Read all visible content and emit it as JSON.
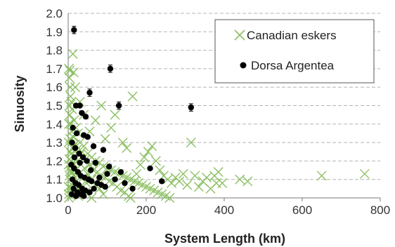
{
  "chart_data": {
    "type": "scatter",
    "xlabel": "System Length (km)",
    "ylabel": "Sinuosity",
    "xlim": [
      0,
      800
    ],
    "ylim": [
      1.0,
      2.0
    ],
    "x_ticks": [
      "0",
      "200",
      "400",
      "600",
      "800"
    ],
    "y_ticks": [
      "1.0",
      "1.1",
      "1.2",
      "1.3",
      "1.4",
      "1.5",
      "1.6",
      "1.7",
      "1.8",
      "1.9",
      "2.0"
    ],
    "grid": "horizontal dashed",
    "legend_position": "top-right",
    "series": [
      {
        "name": "Canadian eskers",
        "marker": "x",
        "color": "#8cc063",
        "points": [
          [
            2,
            1.7
          ],
          [
            4,
            1.69
          ],
          [
            3,
            1.65
          ],
          [
            5,
            1.6
          ],
          [
            12,
            1.78
          ],
          [
            6,
            1.55
          ],
          [
            8,
            1.52
          ],
          [
            3,
            1.5
          ],
          [
            10,
            1.48
          ],
          [
            4,
            1.45
          ],
          [
            15,
            1.42
          ],
          [
            7,
            1.4
          ],
          [
            20,
            1.38
          ],
          [
            9,
            1.36
          ],
          [
            25,
            1.35
          ],
          [
            13,
            1.33
          ],
          [
            5,
            1.32
          ],
          [
            30,
            1.3
          ],
          [
            18,
            1.29
          ],
          [
            40,
            1.28
          ],
          [
            11,
            1.27
          ],
          [
            22,
            1.26
          ],
          [
            35,
            1.25
          ],
          [
            8,
            1.24
          ],
          [
            50,
            1.24
          ],
          [
            28,
            1.23
          ],
          [
            16,
            1.22
          ],
          [
            60,
            1.22
          ],
          [
            3,
            1.21
          ],
          [
            45,
            1.21
          ],
          [
            70,
            1.2
          ],
          [
            24,
            1.2
          ],
          [
            12,
            1.19
          ],
          [
            80,
            1.19
          ],
          [
            55,
            1.18
          ],
          [
            33,
            1.18
          ],
          [
            6,
            1.17
          ],
          [
            90,
            1.17
          ],
          [
            42,
            1.16
          ],
          [
            100,
            1.16
          ],
          [
            19,
            1.15
          ],
          [
            65,
            1.15
          ],
          [
            110,
            1.15
          ],
          [
            8,
            1.14
          ],
          [
            75,
            1.14
          ],
          [
            120,
            1.14
          ],
          [
            27,
            1.13
          ],
          [
            50,
            1.13
          ],
          [
            130,
            1.13
          ],
          [
            14,
            1.12
          ],
          [
            85,
            1.12
          ],
          [
            140,
            1.12
          ],
          [
            38,
            1.11
          ],
          [
            95,
            1.11
          ],
          [
            150,
            1.11
          ],
          [
            4,
            1.1
          ],
          [
            60,
            1.1
          ],
          [
            160,
            1.1
          ],
          [
            21,
            1.09
          ],
          [
            105,
            1.09
          ],
          [
            170,
            1.09
          ],
          [
            47,
            1.08
          ],
          [
            115,
            1.08
          ],
          [
            180,
            1.08
          ],
          [
            10,
            1.07
          ],
          [
            70,
            1.07
          ],
          [
            190,
            1.07
          ],
          [
            31,
            1.06
          ],
          [
            125,
            1.06
          ],
          [
            200,
            1.06
          ],
          [
            5,
            1.05
          ],
          [
            80,
            1.05
          ],
          [
            210,
            1.05
          ],
          [
            17,
            1.04
          ],
          [
            135,
            1.04
          ],
          [
            220,
            1.04
          ],
          [
            44,
            1.03
          ],
          [
            145,
            1.03
          ],
          [
            230,
            1.03
          ],
          [
            9,
            1.02
          ],
          [
            90,
            1.02
          ],
          [
            240,
            1.02
          ],
          [
            26,
            1.01
          ],
          [
            155,
            1.01
          ],
          [
            250,
            1.01
          ],
          [
            2,
            1.0
          ],
          [
            60,
            1.0
          ],
          [
            160,
            1.0
          ],
          [
            260,
            1.0
          ],
          [
            36,
            1.03
          ],
          [
            175,
            1.13
          ],
          [
            185,
            1.18
          ],
          [
            195,
            1.22
          ],
          [
            205,
            1.25
          ],
          [
            215,
            1.28
          ],
          [
            225,
            1.2
          ],
          [
            235,
            1.15
          ],
          [
            245,
            1.12
          ],
          [
            255,
            1.1
          ],
          [
            265,
            1.08
          ],
          [
            275,
            1.11
          ],
          [
            285,
            1.09
          ],
          [
            295,
            1.13
          ],
          [
            305,
            1.07
          ],
          [
            315,
            1.3
          ],
          [
            325,
            1.12
          ],
          [
            335,
            1.06
          ],
          [
            345,
            1.09
          ],
          [
            355,
            1.11
          ],
          [
            365,
            1.05
          ],
          [
            375,
            1.12
          ],
          [
            385,
            1.14
          ],
          [
            395,
            1.08
          ],
          [
            380,
            1.08
          ],
          [
            440,
            1.1
          ],
          [
            460,
            1.09
          ],
          [
            650,
            1.12
          ],
          [
            760,
            1.13
          ],
          [
            165,
            1.55
          ],
          [
            120,
            1.45
          ],
          [
            85,
            1.5
          ],
          [
            110,
            1.38
          ],
          [
            140,
            1.3
          ],
          [
            95,
            1.32
          ],
          [
            150,
            1.27
          ],
          [
            70,
            1.42
          ],
          [
            55,
            1.36
          ],
          [
            40,
            1.45
          ],
          [
            30,
            1.52
          ],
          [
            18,
            1.6
          ],
          [
            14,
            1.68
          ],
          [
            1,
            1.3
          ],
          [
            2,
            1.4
          ],
          [
            1,
            1.18
          ],
          [
            3,
            1.12
          ],
          [
            1,
            1.06
          ],
          [
            2,
            1.02
          ],
          [
            5,
            1.25
          ],
          [
            7,
            1.15
          ],
          [
            10,
            1.05
          ]
        ]
      },
      {
        "name": "Dorsa Argentea",
        "marker": "circle",
        "color": "#000000",
        "points": [
          {
            "x": 15,
            "y": 1.91,
            "err": 0.02
          },
          {
            "x": 108,
            "y": 1.7,
            "err": 0.02
          },
          {
            "x": 55,
            "y": 1.57,
            "err": 0.02
          },
          {
            "x": 130,
            "y": 1.5,
            "err": 0.02
          },
          {
            "x": 315,
            "y": 1.49,
            "err": 0.02
          },
          {
            "x": 20,
            "y": 1.5
          },
          {
            "x": 30,
            "y": 1.5
          },
          {
            "x": 35,
            "y": 1.46
          },
          {
            "x": 45,
            "y": 1.44
          },
          {
            "x": 12,
            "y": 1.38
          },
          {
            "x": 22,
            "y": 1.35
          },
          {
            "x": 40,
            "y": 1.34
          },
          {
            "x": 50,
            "y": 1.33
          },
          {
            "x": 65,
            "y": 1.28
          },
          {
            "x": 90,
            "y": 1.26
          },
          {
            "x": 10,
            "y": 1.3
          },
          {
            "x": 18,
            "y": 1.27
          },
          {
            "x": 28,
            "y": 1.24
          },
          {
            "x": 38,
            "y": 1.22
          },
          {
            "x": 48,
            "y": 1.2
          },
          {
            "x": 70,
            "y": 1.19
          },
          {
            "x": 105,
            "y": 1.17
          },
          {
            "x": 135,
            "y": 1.14
          },
          {
            "x": 210,
            "y": 1.16
          },
          {
            "x": 240,
            "y": 1.09
          },
          {
            "x": 165,
            "y": 1.05
          },
          {
            "x": 8,
            "y": 1.18
          },
          {
            "x": 15,
            "y": 1.16
          },
          {
            "x": 25,
            "y": 1.14
          },
          {
            "x": 32,
            "y": 1.12
          },
          {
            "x": 42,
            "y": 1.11
          },
          {
            "x": 52,
            "y": 1.1
          },
          {
            "x": 60,
            "y": 1.09
          },
          {
            "x": 75,
            "y": 1.08
          },
          {
            "x": 85,
            "y": 1.07
          },
          {
            "x": 95,
            "y": 1.06
          },
          {
            "x": 120,
            "y": 1.1
          },
          {
            "x": 145,
            "y": 1.08
          },
          {
            "x": 11,
            "y": 1.1
          },
          {
            "x": 19,
            "y": 1.08
          },
          {
            "x": 27,
            "y": 1.07
          },
          {
            "x": 36,
            "y": 1.05
          },
          {
            "x": 44,
            "y": 1.04
          },
          {
            "x": 14,
            "y": 1.05
          },
          {
            "x": 24,
            "y": 1.03
          },
          {
            "x": 33,
            "y": 1.02
          },
          {
            "x": 9,
            "y": 1.02
          },
          {
            "x": 20,
            "y": 1.01
          },
          {
            "x": 40,
            "y": 1.01
          },
          {
            "x": 55,
            "y": 1.03
          },
          {
            "x": 66,
            "y": 1.05
          },
          {
            "x": 80,
            "y": 1.11
          },
          {
            "x": 100,
            "y": 1.13
          },
          {
            "x": 58,
            "y": 1.15
          },
          {
            "x": 30,
            "y": 1.19
          },
          {
            "x": 16,
            "y": 1.22
          }
        ]
      }
    ]
  }
}
